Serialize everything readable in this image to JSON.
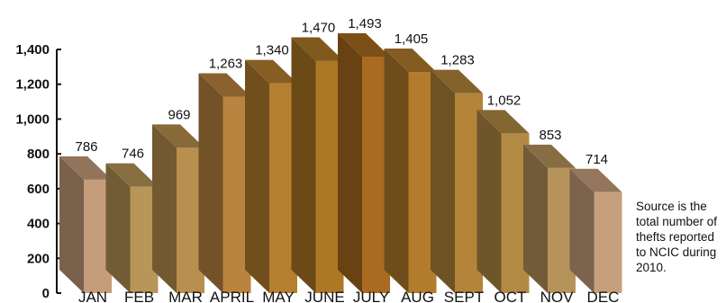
{
  "chart_data": {
    "type": "bar",
    "title": "",
    "xlabel": "",
    "ylabel": "",
    "categories": [
      "JAN",
      "FEB",
      "MAR",
      "APRIL",
      "MAY",
      "JUNE",
      "JULY",
      "AUG",
      "SEPT",
      "OCT",
      "NOV",
      "DEC"
    ],
    "values": [
      786,
      746,
      969,
      1263,
      1340,
      1470,
      1493,
      1405,
      1283,
      1052,
      853,
      714
    ],
    "value_labels": [
      "786",
      "746",
      "969",
      "1,263",
      "1,340",
      "1,470",
      "1,493",
      "1,405",
      "1,283",
      "1,052",
      "853",
      "714"
    ],
    "ylim": [
      0,
      1400
    ],
    "yticks": [
      0,
      200,
      400,
      600,
      800,
      1000,
      1200,
      1400
    ],
    "ytick_labels": [
      "0",
      "200",
      "400",
      "600",
      "800",
      "1,000",
      "1,200",
      "1,400"
    ],
    "grid": false,
    "legend": "none",
    "style": "3d-bars",
    "bar_colors": [
      "#c59d7a",
      "#b89558",
      "#b88f4e",
      "#b9843f",
      "#b57f2f",
      "#ad7826",
      "#a86b1f",
      "#b27c2c",
      "#b3843a",
      "#b38a44",
      "#b7935c",
      "#c6a07c"
    ]
  },
  "note": "Source is the total number of thefts reported to NCIC during 2010."
}
